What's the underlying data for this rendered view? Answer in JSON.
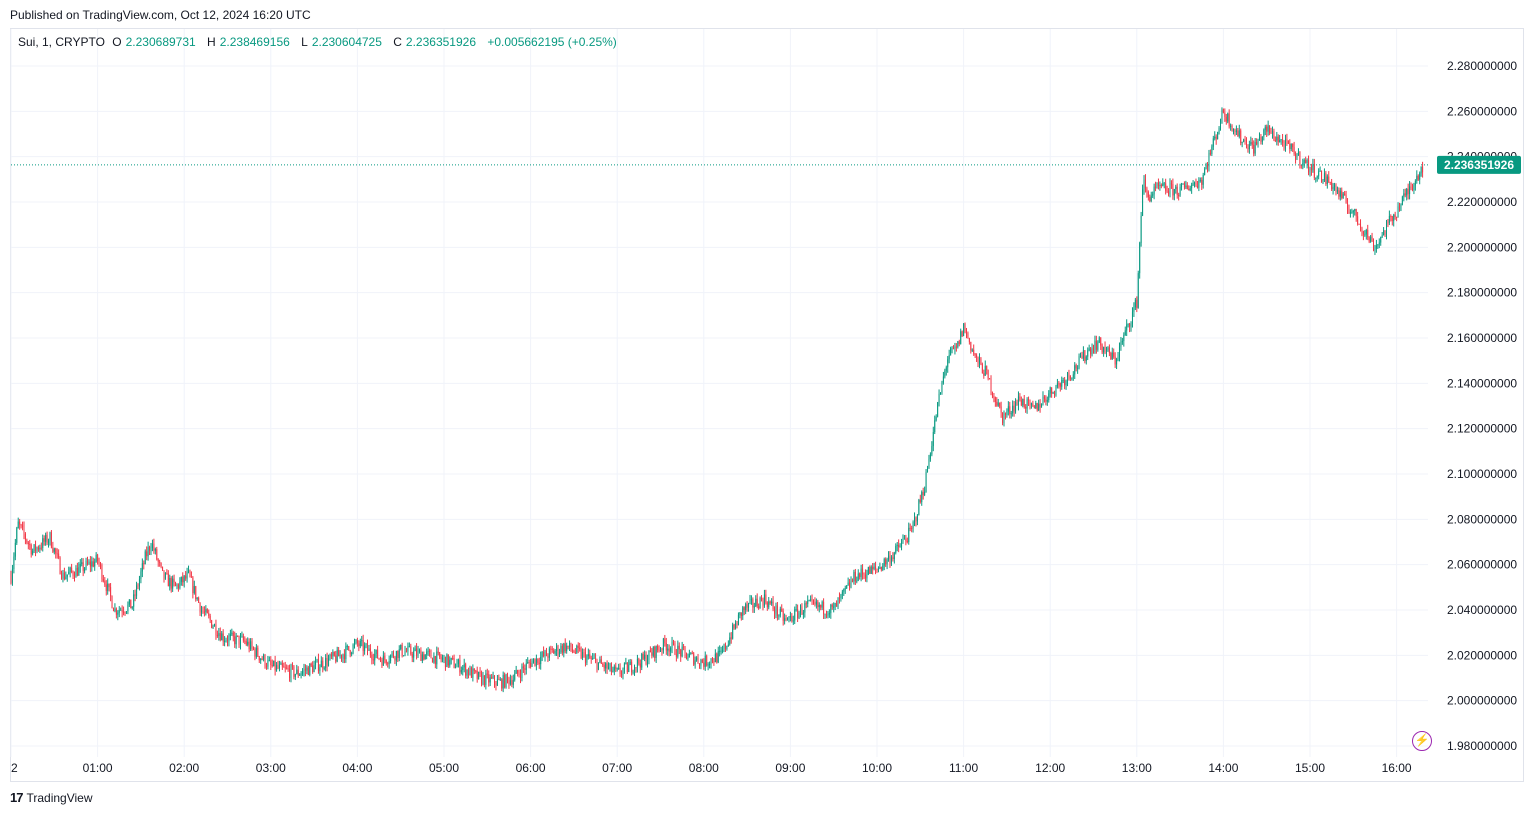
{
  "header": {
    "published": "Published on TradingView.com, Oct 12, 2024 16:20 UTC"
  },
  "legend": {
    "symbol": "Sui, 1, CRYPTO",
    "o_label": "O",
    "o_value": "2.230689731",
    "h_label": "H",
    "h_value": "2.238469156",
    "l_label": "L",
    "l_value": "2.230604725",
    "c_label": "C",
    "c_value": "2.236351926",
    "change": "+0.005662195 (+0.25%)"
  },
  "footer": {
    "brand": "TradingView",
    "logo_icon": "tradingview-logo-icon"
  },
  "colors": {
    "up": "#089981",
    "down": "#f23645",
    "grid": "#f0f3fa",
    "price_line": "#089981"
  },
  "chart_data": {
    "type": "candlestick",
    "title": "",
    "symbol": "Sui, 1, CRYPTO",
    "interval_minutes": 1,
    "x_tick_labels": [
      "2",
      "01:00",
      "02:00",
      "03:00",
      "04:00",
      "05:00",
      "06:00",
      "07:00",
      "08:00",
      "09:00",
      "10:00",
      "11:00",
      "12:00",
      "13:00",
      "14:00",
      "15:00",
      "16:00"
    ],
    "y_tick_labels": [
      "2.280000000",
      "2.260000000",
      "2.240000000",
      "2.220000000",
      "2.200000000",
      "2.180000000",
      "2.160000000",
      "2.140000000",
      "2.120000000",
      "2.100000000",
      "2.080000000",
      "2.060000000",
      "2.040000000",
      "2.020000000",
      "2.000000000",
      "1.980000000"
    ],
    "ylim": [
      1.975,
      2.29
    ],
    "xlim_hours": [
      0.0,
      16.75
    ],
    "last_price": 2.236351926,
    "last_price_label": "2.236351926",
    "path_hours": [
      0.0,
      0.08,
      0.25,
      0.45,
      0.6,
      0.8,
      1.0,
      1.2,
      1.4,
      1.55,
      1.62,
      1.75,
      1.9,
      2.05,
      2.2,
      2.45,
      2.7,
      3.0,
      3.3,
      3.5,
      3.8,
      4.0,
      4.3,
      4.5,
      4.8,
      5.0,
      5.2,
      5.4,
      5.65,
      5.8,
      6.0,
      6.4,
      6.7,
      7.0,
      7.3,
      7.55,
      7.8,
      8.0,
      8.2,
      8.45,
      8.7,
      8.95,
      9.2,
      9.5,
      9.75,
      10.0,
      10.2,
      10.4,
      10.55,
      10.7,
      10.82,
      10.92,
      11.0,
      11.15,
      11.25,
      11.45,
      11.65,
      11.8,
      12.0,
      12.25,
      12.45,
      12.55,
      12.75,
      13.0,
      13.07,
      13.12,
      13.25,
      13.5,
      13.75,
      14.0,
      14.2,
      14.35,
      14.5,
      14.75,
      15.0,
      15.25,
      15.5,
      15.75,
      15.9,
      16.0,
      16.15,
      16.3
    ],
    "path_values": [
      2.055,
      2.078,
      2.066,
      2.072,
      2.055,
      2.058,
      2.062,
      2.04,
      2.042,
      2.063,
      2.07,
      2.055,
      2.05,
      2.055,
      2.04,
      2.028,
      2.026,
      2.015,
      2.012,
      2.015,
      2.02,
      2.025,
      2.018,
      2.022,
      2.02,
      2.018,
      2.015,
      2.01,
      2.008,
      2.01,
      2.017,
      2.024,
      2.018,
      2.012,
      2.018,
      2.025,
      2.02,
      2.017,
      2.02,
      2.04,
      2.045,
      2.035,
      2.042,
      2.04,
      2.055,
      2.058,
      2.065,
      2.075,
      2.095,
      2.13,
      2.152,
      2.155,
      2.165,
      2.15,
      2.145,
      2.125,
      2.133,
      2.128,
      2.136,
      2.145,
      2.155,
      2.158,
      2.15,
      2.176,
      2.23,
      2.222,
      2.226,
      2.225,
      2.23,
      2.26,
      2.248,
      2.244,
      2.252,
      2.244,
      2.235,
      2.228,
      2.215,
      2.2,
      2.21,
      2.216,
      2.226,
      2.236
    ]
  }
}
